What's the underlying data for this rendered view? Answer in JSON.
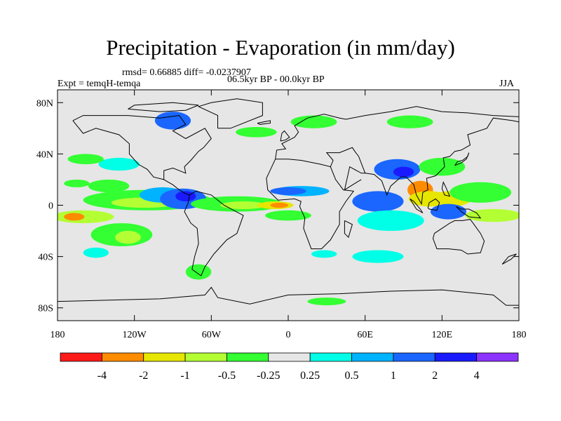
{
  "title": "Precipitation - Evaporation (in mm/day)",
  "stats_line": "rmsd= 0.66885 diff= -0.0237907",
  "experiment": "Expt = temqH-temqa",
  "period": "06.5kyr BP - 00.0kyr BP",
  "season": "JJA",
  "map": {
    "ocean_land_background": "#e6e6e6",
    "lon_range": [
      -180,
      180
    ],
    "lat_range": [
      -90,
      90
    ],
    "lat_ticks": [
      {
        "value": 80,
        "label": "80N"
      },
      {
        "value": 40,
        "label": "40N"
      },
      {
        "value": 0,
        "label": "0"
      },
      {
        "value": -40,
        "label": "40S"
      },
      {
        "value": -80,
        "label": "80S"
      }
    ],
    "lon_ticks": [
      {
        "value": -180,
        "label": "180"
      },
      {
        "value": -120,
        "label": "120W"
      },
      {
        "value": -60,
        "label": "60W"
      },
      {
        "value": 0,
        "label": "0"
      },
      {
        "value": 60,
        "label": "60E"
      },
      {
        "value": 120,
        "label": "120E"
      },
      {
        "value": 180,
        "label": "180"
      }
    ]
  },
  "colorbar": {
    "colors": [
      "#ff1a1a",
      "#ff8c00",
      "#e6e600",
      "#b3ff33",
      "#33ff33",
      "#e6e6e6",
      "#00ffe6",
      "#00b3ff",
      "#1a66ff",
      "#1a1aff",
      "#8c33ff"
    ],
    "labels": [
      "-4",
      "-2",
      "-1",
      "-0.5",
      "-0.25",
      "0.25",
      "0.5",
      "1",
      "2",
      "4"
    ]
  },
  "anomaly_regions": [
    {
      "lon": -132,
      "lat": 32,
      "rx": 16,
      "ry": 5,
      "level": "0.25-0.5"
    },
    {
      "lon": -158,
      "lat": 36,
      "rx": 14,
      "ry": 4,
      "level": "-0.25-0.25-neg"
    },
    {
      "lon": -165,
      "lat": 17,
      "rx": 10,
      "ry": 3,
      "level": "-0.5--0.25"
    },
    {
      "lon": -140,
      "lat": 15,
      "rx": 16,
      "ry": 5,
      "level": "-0.5--0.25"
    },
    {
      "lon": -110,
      "lat": 4,
      "rx": 50,
      "ry": 8,
      "level": "-0.5--0.25"
    },
    {
      "lon": -112,
      "lat": 2,
      "rx": 26,
      "ry": 4,
      "level": "-1--0.5"
    },
    {
      "lon": -98,
      "lat": 8,
      "rx": 18,
      "ry": 6,
      "level": "0.5-1"
    },
    {
      "lon": -82,
      "lat": 5,
      "rx": 18,
      "ry": 8,
      "level": "1-2"
    },
    {
      "lon": -80,
      "lat": 7,
      "rx": 8,
      "ry": 4,
      "level": "2-4"
    },
    {
      "lon": -160,
      "lat": -9,
      "rx": 24,
      "ry": 5,
      "level": "-1--0.5"
    },
    {
      "lon": -167,
      "lat": -9,
      "rx": 8,
      "ry": 3,
      "level": "-4--2"
    },
    {
      "lon": -130,
      "lat": -23,
      "rx": 24,
      "ry": 9,
      "level": "-0.5--0.25"
    },
    {
      "lon": -125,
      "lat": -25,
      "rx": 10,
      "ry": 5,
      "level": "-1--0.5"
    },
    {
      "lon": -150,
      "lat": -37,
      "rx": 10,
      "ry": 4,
      "level": "0.25-0.5"
    },
    {
      "lon": -40,
      "lat": 1,
      "rx": 36,
      "ry": 6,
      "level": "-0.5--0.25"
    },
    {
      "lon": -35,
      "lat": 0,
      "rx": 18,
      "ry": 3,
      "level": "-1--0.5"
    },
    {
      "lon": -10,
      "lat": 0,
      "rx": 14,
      "ry": 3,
      "level": "-2--1"
    },
    {
      "lon": -7,
      "lat": 0,
      "rx": 7,
      "ry": 2,
      "level": "-4--2"
    },
    {
      "lon": 10,
      "lat": 11,
      "rx": 22,
      "ry": 4,
      "level": "0.5-1"
    },
    {
      "lon": 0,
      "lat": 11,
      "rx": 14,
      "ry": 3,
      "level": "1-2"
    },
    {
      "lon": 0,
      "lat": -8,
      "rx": 18,
      "ry": 4,
      "level": "-0.5--0.25"
    },
    {
      "lon": 70,
      "lat": 3,
      "rx": 20,
      "ry": 8,
      "level": "1-2"
    },
    {
      "lon": 80,
      "lat": -12,
      "rx": 26,
      "ry": 8,
      "level": "0.25-0.5"
    },
    {
      "lon": 85,
      "lat": 28,
      "rx": 18,
      "ry": 8,
      "level": "1-2"
    },
    {
      "lon": 90,
      "lat": 26,
      "rx": 8,
      "ry": 4,
      "level": "2-4"
    },
    {
      "lon": 103,
      "lat": 12,
      "rx": 10,
      "ry": 7,
      "level": "-4--2"
    },
    {
      "lon": 110,
      "lat": 5,
      "rx": 16,
      "ry": 6,
      "level": "-2--1"
    },
    {
      "lon": 127,
      "lat": 5,
      "rx": 16,
      "ry": 6,
      "level": "-2--1"
    },
    {
      "lon": 125,
      "lat": -5,
      "rx": 14,
      "ry": 6,
      "level": "1-2"
    },
    {
      "lon": 120,
      "lat": 30,
      "rx": 18,
      "ry": 7,
      "level": "-0.5--0.25"
    },
    {
      "lon": 150,
      "lat": 10,
      "rx": 24,
      "ry": 8,
      "level": "-0.5--0.25"
    },
    {
      "lon": 160,
      "lat": -8,
      "rx": 22,
      "ry": 5,
      "level": "-1--0.5"
    },
    {
      "lon": 70,
      "lat": -40,
      "rx": 20,
      "ry": 5,
      "level": "0.25-0.5"
    },
    {
      "lon": 28,
      "lat": -38,
      "rx": 10,
      "ry": 3,
      "level": "0.25-0.5"
    },
    {
      "lon": -25,
      "lat": 57,
      "rx": 16,
      "ry": 4,
      "level": "-0.5--0.25"
    },
    {
      "lon": -90,
      "lat": 66,
      "rx": 14,
      "ry": 7,
      "level": "1-2"
    },
    {
      "lon": 20,
      "lat": 65,
      "rx": 18,
      "ry": 5,
      "level": "-0.5--0.25"
    },
    {
      "lon": 95,
      "lat": 65,
      "rx": 18,
      "ry": 5,
      "level": "-0.5--0.25"
    },
    {
      "lon": -70,
      "lat": -52,
      "rx": 10,
      "ry": 6,
      "level": "-0.5--0.25"
    },
    {
      "lon": 30,
      "lat": -75,
      "rx": 15,
      "ry": 3,
      "level": "-0.5--0.25"
    }
  ]
}
